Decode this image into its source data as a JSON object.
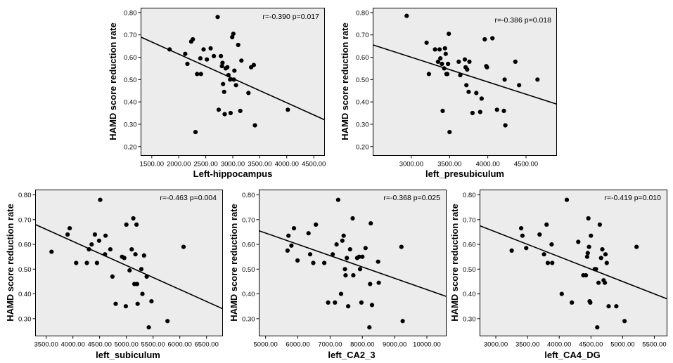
{
  "chart_data": [
    {
      "type": "scatter",
      "xlabel": "Left-hippocampus",
      "ylabel": "HAMD score reduction rate",
      "stat": "r=-0.390  p=0.017",
      "xlim": [
        1300,
        4700
      ],
      "ylim": [
        0.16,
        0.82
      ],
      "xticks": [
        "1500.00",
        "2000.00",
        "2500.00",
        "3000.00",
        "3500.00",
        "4000.00",
        "4500.00"
      ],
      "xtick_values": [
        1500,
        2000,
        2500,
        3000,
        3500,
        4000,
        4500
      ],
      "yticks": [
        "0.20",
        "0.30",
        "0.40",
        "0.50",
        "0.60",
        "0.70",
        "0.80"
      ],
      "ytick_values": [
        0.2,
        0.3,
        0.4,
        0.5,
        0.6,
        0.7,
        0.8
      ],
      "fit": {
        "x": [
          1300,
          4700
        ],
        "y": [
          0.69,
          0.32
        ]
      },
      "points": [
        [
          1830,
          0.635
        ],
        [
          2120,
          0.615
        ],
        [
          2160,
          0.57
        ],
        [
          2230,
          0.67
        ],
        [
          2260,
          0.68
        ],
        [
          2310,
          0.265
        ],
        [
          2340,
          0.525
        ],
        [
          2400,
          0.595
        ],
        [
          2410,
          0.525
        ],
        [
          2460,
          0.635
        ],
        [
          2520,
          0.59
        ],
        [
          2590,
          0.64
        ],
        [
          2650,
          0.605
        ],
        [
          2720,
          0.78
        ],
        [
          2740,
          0.365
        ],
        [
          2780,
          0.605
        ],
        [
          2800,
          0.56
        ],
        [
          2810,
          0.575
        ],
        [
          2820,
          0.48
        ],
        [
          2840,
          0.445
        ],
        [
          2850,
          0.345
        ],
        [
          2870,
          0.55
        ],
        [
          2900,
          0.555
        ],
        [
          2920,
          0.52
        ],
        [
          2950,
          0.5
        ],
        [
          2960,
          0.35
        ],
        [
          2990,
          0.69
        ],
        [
          3010,
          0.705
        ],
        [
          3020,
          0.5
        ],
        [
          3030,
          0.54
        ],
        [
          3060,
          0.475
        ],
        [
          3100,
          0.655
        ],
        [
          3140,
          0.36
        ],
        [
          3160,
          0.585
        ],
        [
          3290,
          0.44
        ],
        [
          3340,
          0.555
        ],
        [
          3390,
          0.565
        ],
        [
          3410,
          0.295
        ],
        [
          4020,
          0.365
        ]
      ]
    },
    {
      "type": "scatter",
      "xlabel": "left_presubiculum",
      "ylabel": "HAMD score reduction rate",
      "stat": "r=-0.386  p=0.018",
      "xlim": [
        2500,
        4900
      ],
      "ylim": [
        0.16,
        0.82
      ],
      "xticks": [
        "3000.00",
        "3500.00",
        "4000.00",
        "4500.00"
      ],
      "xtick_values": [
        3000,
        3500,
        4000,
        4500
      ],
      "yticks": [
        "0.20",
        "0.30",
        "0.40",
        "0.50",
        "0.60",
        "0.70",
        "0.80"
      ],
      "ytick_values": [
        0.2,
        0.3,
        0.4,
        0.5,
        0.6,
        0.7,
        0.8
      ],
      "fit": {
        "x": [
          2500,
          4900
        ],
        "y": [
          0.655,
          0.39
        ]
      },
      "points": [
        [
          2940,
          0.785
        ],
        [
          3200,
          0.665
        ],
        [
          3230,
          0.525
        ],
        [
          3310,
          0.635
        ],
        [
          3350,
          0.58
        ],
        [
          3370,
          0.635
        ],
        [
          3380,
          0.595
        ],
        [
          3400,
          0.57
        ],
        [
          3410,
          0.36
        ],
        [
          3430,
          0.55
        ],
        [
          3440,
          0.64
        ],
        [
          3450,
          0.615
        ],
        [
          3460,
          0.525
        ],
        [
          3470,
          0.525
        ],
        [
          3480,
          0.57
        ],
        [
          3490,
          0.705
        ],
        [
          3500,
          0.265
        ],
        [
          3620,
          0.58
        ],
        [
          3640,
          0.52
        ],
        [
          3700,
          0.59
        ],
        [
          3710,
          0.555
        ],
        [
          3720,
          0.475
        ],
        [
          3730,
          0.545
        ],
        [
          3750,
          0.445
        ],
        [
          3760,
          0.58
        ],
        [
          3800,
          0.35
        ],
        [
          3850,
          0.44
        ],
        [
          3900,
          0.355
        ],
        [
          3920,
          0.415
        ],
        [
          3960,
          0.68
        ],
        [
          3980,
          0.56
        ],
        [
          3990,
          0.555
        ],
        [
          4060,
          0.685
        ],
        [
          4120,
          0.365
        ],
        [
          4210,
          0.36
        ],
        [
          4220,
          0.5
        ],
        [
          4230,
          0.295
        ],
        [
          4360,
          0.58
        ],
        [
          4410,
          0.475
        ],
        [
          4650,
          0.5
        ]
      ]
    },
    {
      "type": "scatter",
      "xlabel": "left_subiculum",
      "ylabel": "HAMD score reduction rate",
      "stat": "r=-0.463  p=0.004",
      "xlim": [
        3300,
        6800
      ],
      "ylim": [
        0.23,
        0.82
      ],
      "xticks": [
        "3500.00",
        "4000.00",
        "4500.00",
        "5000.00",
        "5500.00",
        "6000.00",
        "6500.00"
      ],
      "xtick_values": [
        3500,
        4000,
        4500,
        5000,
        5500,
        6000,
        6500
      ],
      "yticks": [
        "0.30",
        "0.40",
        "0.50",
        "0.60",
        "0.70",
        "0.80"
      ],
      "ytick_values": [
        0.3,
        0.4,
        0.5,
        0.6,
        0.7,
        0.8
      ],
      "fit": {
        "x": [
          3300,
          6800
        ],
        "y": [
          0.68,
          0.34
        ]
      },
      "points": [
        [
          3600,
          0.57
        ],
        [
          3900,
          0.64
        ],
        [
          3940,
          0.665
        ],
        [
          4060,
          0.525
        ],
        [
          4260,
          0.525
        ],
        [
          4300,
          0.58
        ],
        [
          4350,
          0.6
        ],
        [
          4410,
          0.64
        ],
        [
          4450,
          0.525
        ],
        [
          4490,
          0.615
        ],
        [
          4510,
          0.78
        ],
        [
          4600,
          0.56
        ],
        [
          4610,
          0.635
        ],
        [
          4700,
          0.58
        ],
        [
          4740,
          0.47
        ],
        [
          4800,
          0.36
        ],
        [
          4920,
          0.55
        ],
        [
          4960,
          0.545
        ],
        [
          4990,
          0.35
        ],
        [
          5000,
          0.68
        ],
        [
          5060,
          0.495
        ],
        [
          5100,
          0.58
        ],
        [
          5130,
          0.705
        ],
        [
          5150,
          0.44
        ],
        [
          5170,
          0.56
        ],
        [
          5190,
          0.68
        ],
        [
          5200,
          0.44
        ],
        [
          5210,
          0.36
        ],
        [
          5280,
          0.5
        ],
        [
          5300,
          0.4
        ],
        [
          5330,
          0.555
        ],
        [
          5380,
          0.47
        ],
        [
          5420,
          0.265
        ],
        [
          5470,
          0.37
        ],
        [
          5770,
          0.29
        ],
        [
          6070,
          0.59
        ]
      ]
    },
    {
      "type": "scatter",
      "xlabel": "left_CA2_3",
      "ylabel": "HAMD score reduction rate",
      "stat": "r=-0.368  p=0.025",
      "xlim": [
        4800,
        10600
      ],
      "ylim": [
        0.23,
        0.82
      ],
      "xticks": [
        "5000.00",
        "6000.00",
        "7000.00",
        "8000.00",
        "9000.00",
        "10000.00"
      ],
      "xtick_values": [
        5000,
        6000,
        7000,
        8000,
        9000,
        10000
      ],
      "yticks": [
        "0.30",
        "0.40",
        "0.50",
        "0.60",
        "0.70",
        "0.80"
      ],
      "ytick_values": [
        0.3,
        0.4,
        0.5,
        0.6,
        0.7,
        0.8
      ],
      "fit": {
        "x": [
          4800,
          10600
        ],
        "y": [
          0.655,
          0.39
        ]
      },
      "points": [
        [
          5680,
          0.575
        ],
        [
          5710,
          0.635
        ],
        [
          5800,
          0.595
        ],
        [
          5880,
          0.665
        ],
        [
          5990,
          0.535
        ],
        [
          6330,
          0.645
        ],
        [
          6380,
          0.56
        ],
        [
          6480,
          0.525
        ],
        [
          6560,
          0.68
        ],
        [
          6820,
          0.525
        ],
        [
          6940,
          0.365
        ],
        [
          7080,
          0.56
        ],
        [
          7150,
          0.365
        ],
        [
          7200,
          0.6
        ],
        [
          7250,
          0.78
        ],
        [
          7340,
          0.4
        ],
        [
          7380,
          0.615
        ],
        [
          7420,
          0.635
        ],
        [
          7460,
          0.5
        ],
        [
          7480,
          0.475
        ],
        [
          7520,
          0.545
        ],
        [
          7560,
          0.35
        ],
        [
          7620,
          0.58
        ],
        [
          7700,
          0.705
        ],
        [
          7720,
          0.475
        ],
        [
          7840,
          0.545
        ],
        [
          7900,
          0.55
        ],
        [
          7930,
          0.5
        ],
        [
          7970,
          0.365
        ],
        [
          8000,
          0.55
        ],
        [
          8100,
          0.585
        ],
        [
          8220,
          0.265
        ],
        [
          8240,
          0.44
        ],
        [
          8260,
          0.685
        ],
        [
          8300,
          0.355
        ],
        [
          8490,
          0.53
        ],
        [
          8510,
          0.445
        ],
        [
          9210,
          0.59
        ],
        [
          9250,
          0.29
        ]
      ]
    },
    {
      "type": "scatter",
      "xlabel": "left_CA4_DG",
      "ylabel": "HAMD score reduction rate",
      "stat": "r=-0.419  p=0.010",
      "xlim": [
        2750,
        5700
      ],
      "ylim": [
        0.23,
        0.82
      ],
      "xticks": [
        "3000.00",
        "3500.00",
        "4000.00",
        "4500.00",
        "5000.00",
        "5500.00"
      ],
      "xtick_values": [
        3000,
        3500,
        4000,
        4500,
        5000,
        5500
      ],
      "yticks": [
        "0.30",
        "0.40",
        "0.50",
        "0.60",
        "0.70",
        "0.80"
      ],
      "ytick_values": [
        0.3,
        0.4,
        0.5,
        0.6,
        0.7,
        0.8
      ],
      "fit": {
        "x": [
          2750,
          5700
        ],
        "y": [
          0.675,
          0.38
        ]
      },
      "points": [
        [
          3250,
          0.575
        ],
        [
          3400,
          0.665
        ],
        [
          3420,
          0.635
        ],
        [
          3480,
          0.585
        ],
        [
          3690,
          0.64
        ],
        [
          3760,
          0.56
        ],
        [
          3800,
          0.68
        ],
        [
          3820,
          0.525
        ],
        [
          3880,
          0.6
        ],
        [
          3890,
          0.525
        ],
        [
          4040,
          0.4
        ],
        [
          4120,
          0.78
        ],
        [
          4200,
          0.365
        ],
        [
          4300,
          0.61
        ],
        [
          4380,
          0.475
        ],
        [
          4420,
          0.475
        ],
        [
          4440,
          0.55
        ],
        [
          4450,
          0.565
        ],
        [
          4460,
          0.705
        ],
        [
          4470,
          0.59
        ],
        [
          4480,
          0.37
        ],
        [
          4490,
          0.365
        ],
        [
          4500,
          0.635
        ],
        [
          4560,
          0.5
        ],
        [
          4580,
          0.5
        ],
        [
          4600,
          0.265
        ],
        [
          4620,
          0.445
        ],
        [
          4640,
          0.68
        ],
        [
          4660,
          0.545
        ],
        [
          4680,
          0.58
        ],
        [
          4700,
          0.455
        ],
        [
          4720,
          0.445
        ],
        [
          4730,
          0.56
        ],
        [
          4750,
          0.525
        ],
        [
          4780,
          0.35
        ],
        [
          4900,
          0.35
        ],
        [
          5030,
          0.29
        ],
        [
          5220,
          0.59
        ]
      ]
    }
  ]
}
